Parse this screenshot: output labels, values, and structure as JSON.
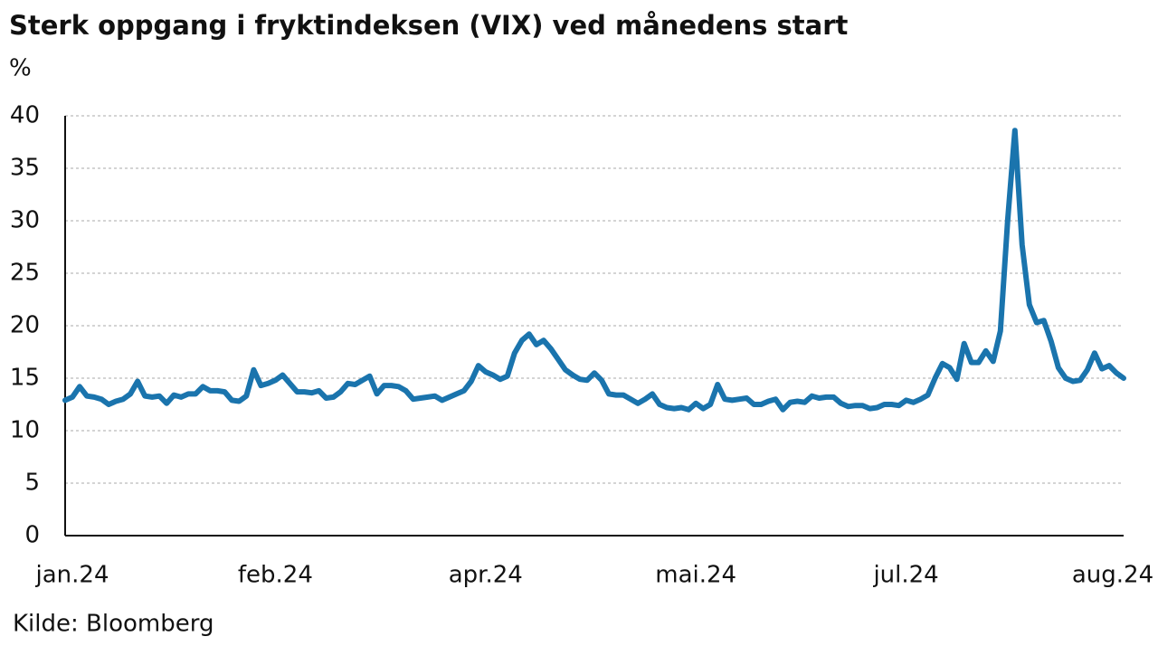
{
  "chart_data": {
    "type": "line",
    "title": "Sterk oppgang i fryktindeksen (VIX) ved månedens start",
    "y_axis_label": "%",
    "source": "Kilde: Bloomberg",
    "categories": [
      null,
      "jan.24",
      null,
      null,
      null,
      null,
      null,
      null,
      null,
      null,
      null,
      null,
      null,
      null,
      null,
      null,
      null,
      null,
      null,
      null,
      null,
      null,
      null,
      null,
      null,
      null,
      null,
      null,
      null,
      "feb.24",
      null,
      null,
      null,
      null,
      null,
      null,
      null,
      null,
      null,
      null,
      null,
      null,
      null,
      null,
      null,
      null,
      null,
      null,
      null,
      null,
      null,
      null,
      null,
      null,
      null,
      null,
      null,
      null,
      "apr.24",
      null,
      null,
      null,
      null,
      null,
      null,
      null,
      null,
      null,
      null,
      null,
      null,
      null,
      null,
      null,
      null,
      null,
      null,
      null,
      null,
      null,
      null,
      null,
      null,
      null,
      null,
      null,
      null,
      "mai.24",
      null,
      null,
      null,
      null,
      null,
      null,
      null,
      null,
      null,
      null,
      null,
      null,
      null,
      null,
      null,
      null,
      null,
      null,
      null,
      null,
      null,
      null,
      null,
      null,
      null,
      null,
      null,
      null,
      "jul.24",
      null,
      null,
      null,
      null,
      null,
      null,
      null,
      null,
      null,
      null,
      null,
      null,
      null,
      null,
      null,
      null,
      null,
      null,
      null,
      null,
      null,
      null,
      null,
      null,
      null,
      null,
      null,
      null,
      "aug.24",
      null
    ],
    "values": [
      12.9,
      13.2,
      14.2,
      13.3,
      13.2,
      13.0,
      12.5,
      12.8,
      13.0,
      13.5,
      14.7,
      13.3,
      13.2,
      13.3,
      12.6,
      13.4,
      13.2,
      13.5,
      13.5,
      14.2,
      13.8,
      13.8,
      13.7,
      12.9,
      12.8,
      13.3,
      15.8,
      14.3,
      14.5,
      14.8,
      15.3,
      14.5,
      13.7,
      13.7,
      13.6,
      13.8,
      13.1,
      13.2,
      13.7,
      14.5,
      14.4,
      14.8,
      15.2,
      13.5,
      14.3,
      14.3,
      14.2,
      13.8,
      13.0,
      13.1,
      13.2,
      13.3,
      12.9,
      13.2,
      13.5,
      13.8,
      14.7,
      16.2,
      15.6,
      15.3,
      14.9,
      15.2,
      17.4,
      18.6,
      19.2,
      18.2,
      18.6,
      17.8,
      16.8,
      15.8,
      15.3,
      14.9,
      14.8,
      15.5,
      14.8,
      13.5,
      13.4,
      13.4,
      13.0,
      12.6,
      13.0,
      13.5,
      12.5,
      12.2,
      12.1,
      12.2,
      12.0,
      12.6,
      12.1,
      12.5,
      14.4,
      13.0,
      12.9,
      13.0,
      13.1,
      12.5,
      12.5,
      12.8,
      13.0,
      12.0,
      12.7,
      12.8,
      12.7,
      13.3,
      13.1,
      13.2,
      13.2,
      12.6,
      12.3,
      12.4,
      12.4,
      12.1,
      12.2,
      12.5,
      12.5,
      12.4,
      12.9,
      12.7,
      13.0,
      13.4,
      15.0,
      16.4,
      16.0,
      14.9,
      18.3,
      16.5,
      16.5,
      17.6,
      16.6,
      19.5,
      30,
      38.6,
      27.7,
      22.0,
      20.3,
      20.5,
      18.5,
      16.0,
      15.0,
      14.7,
      14.8,
      15.8,
      17.4,
      15.9,
      16.2,
      15.5,
      15.0
    ],
    "color": "#1a74ad",
    "ylim": [
      0,
      40
    ],
    "yticks": [
      0,
      5,
      10,
      15,
      20,
      25,
      30,
      35,
      40
    ],
    "grid": true
  }
}
